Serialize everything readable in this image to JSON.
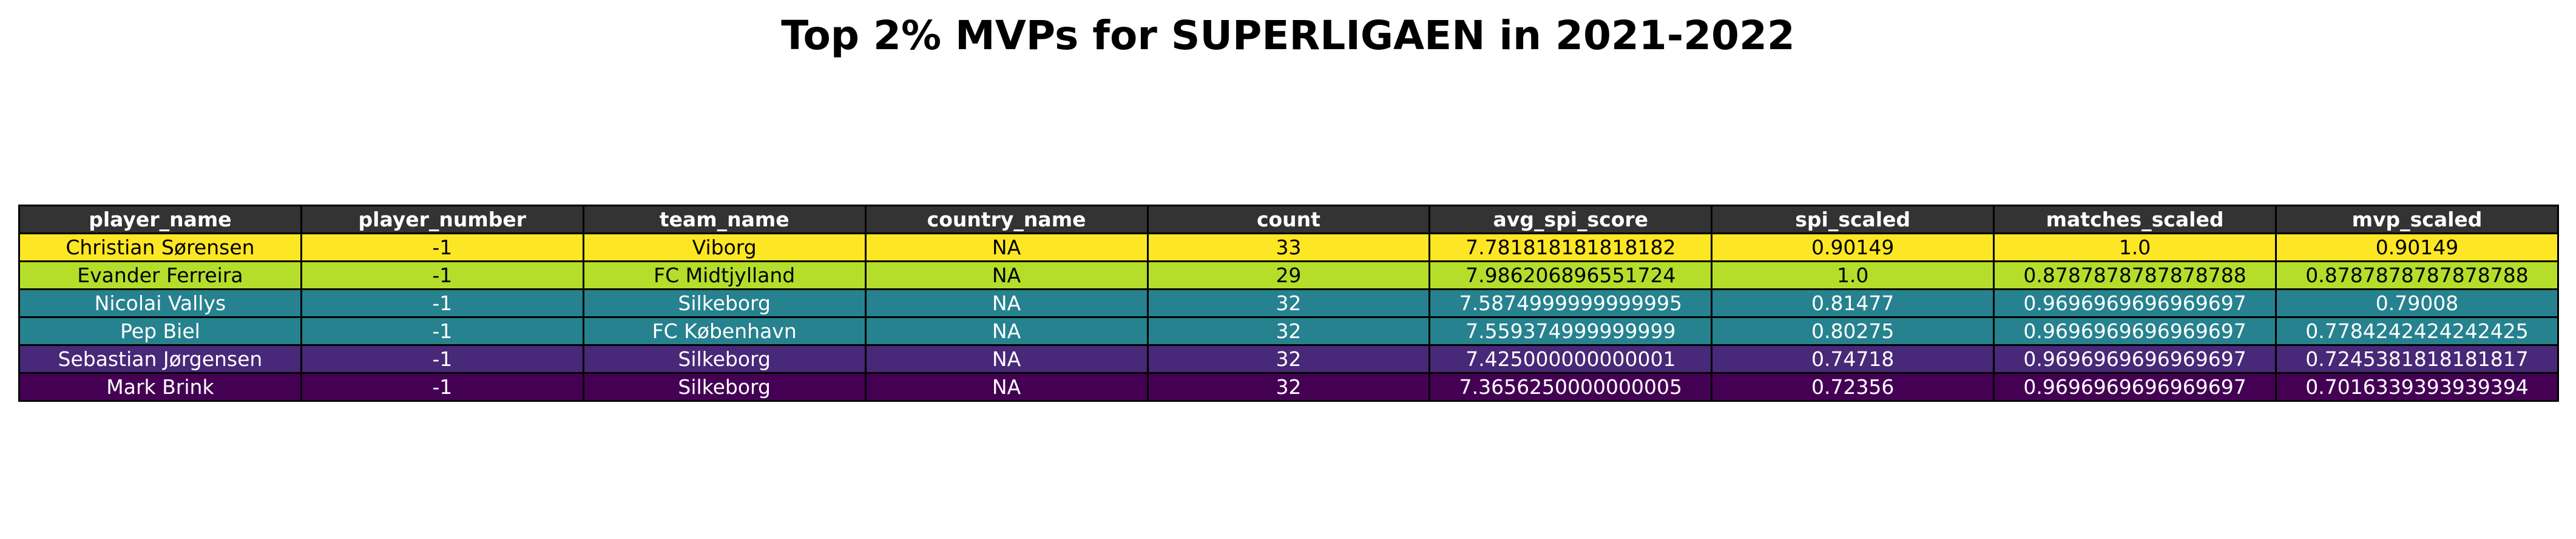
{
  "chart_data": {
    "type": "table",
    "title": "Top 2% MVPs for SUPERLIGAEN in 2021-2022",
    "header_color": "#333333",
    "columns": [
      "player_name",
      "player_number",
      "team_name",
      "country_name",
      "count",
      "avg_spi_score",
      "spi_scaled",
      "matches_scaled",
      "mvp_scaled"
    ],
    "rows": [
      {
        "cells": [
          "Christian Sørensen",
          "-1",
          "Viborg",
          "NA",
          "33",
          "7.781818181818182",
          "0.90149",
          "1.0",
          "0.90149"
        ],
        "bg": "#fde725",
        "fg": "#000000"
      },
      {
        "cells": [
          "Evander Ferreira",
          "-1",
          "FC Midtjylland",
          "NA",
          "29",
          "7.986206896551724",
          "1.0",
          "0.8787878787878788",
          "0.8787878787878788"
        ],
        "bg": "#b5de2b",
        "fg": "#000000"
      },
      {
        "cells": [
          "Nicolai Vallys",
          "-1",
          "Silkeborg",
          "NA",
          "32",
          "7.5874999999999995",
          "0.81477",
          "0.9696969696969697",
          "0.79008"
        ],
        "bg": "#26828e",
        "fg": "#ffffff"
      },
      {
        "cells": [
          "Pep Biel",
          "-1",
          "FC København",
          "NA",
          "32",
          "7.559374999999999",
          "0.80275",
          "0.9696969696969697",
          "0.7784242424242425"
        ],
        "bg": "#26828e",
        "fg": "#ffffff"
      },
      {
        "cells": [
          "Sebastian Jørgensen",
          "-1",
          "Silkeborg",
          "NA",
          "32",
          "7.425000000000001",
          "0.74718",
          "0.9696969696969697",
          "0.7245381818181817"
        ],
        "bg": "#482878",
        "fg": "#ffffff"
      },
      {
        "cells": [
          "Mark Brink",
          "-1",
          "Silkeborg",
          "NA",
          "32",
          "7.3656250000000005",
          "0.72356",
          "0.9696969696969697",
          "0.7016339393939394"
        ],
        "bg": "#440154",
        "fg": "#ffffff"
      }
    ]
  }
}
